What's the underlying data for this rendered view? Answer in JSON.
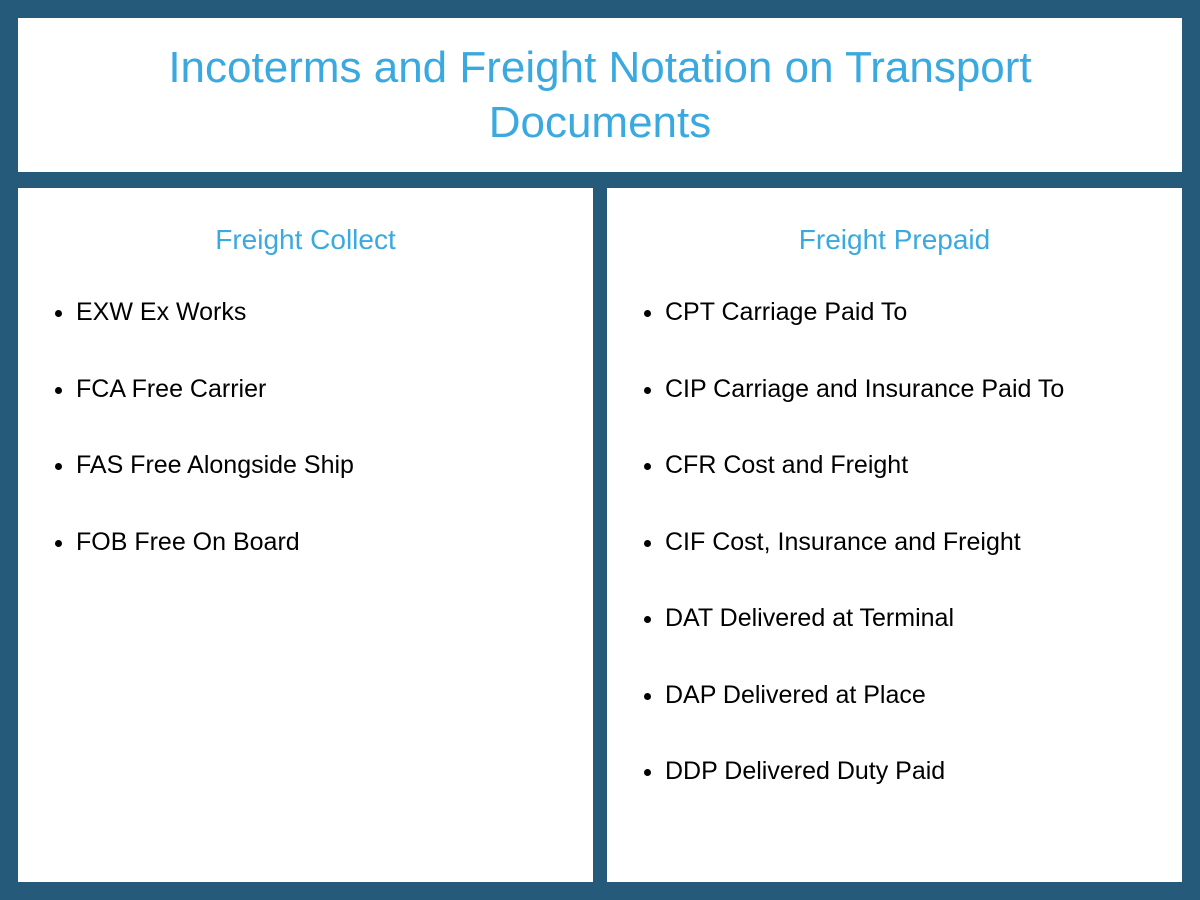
{
  "styling": {
    "page_background": "#265a7a",
    "panel_background": "#ffffff",
    "accent_color": "#3aa9e0",
    "text_color": "#000000",
    "title_fontsize": 44,
    "subtitle_fontsize": 28,
    "item_fontsize": 25,
    "outer_padding": 18,
    "column_gap": 14,
    "layout": "header-over-two-columns"
  },
  "title": "Incoterms and Freight Notation on Transport Documents",
  "left": {
    "heading": "Freight Collect",
    "items": [
      "EXW Ex Works",
      "FCA Free Carrier",
      "FAS Free Alongside Ship",
      "FOB Free On Board"
    ]
  },
  "right": {
    "heading": "Freight Prepaid",
    "items": [
      "CPT Carriage Paid To",
      "CIP Carriage and Insurance Paid To",
      "CFR Cost and Freight",
      "CIF Cost, Insurance and Freight",
      "DAT Delivered at Terminal",
      "DAP Delivered at Place",
      "DDP Delivered Duty Paid"
    ]
  }
}
